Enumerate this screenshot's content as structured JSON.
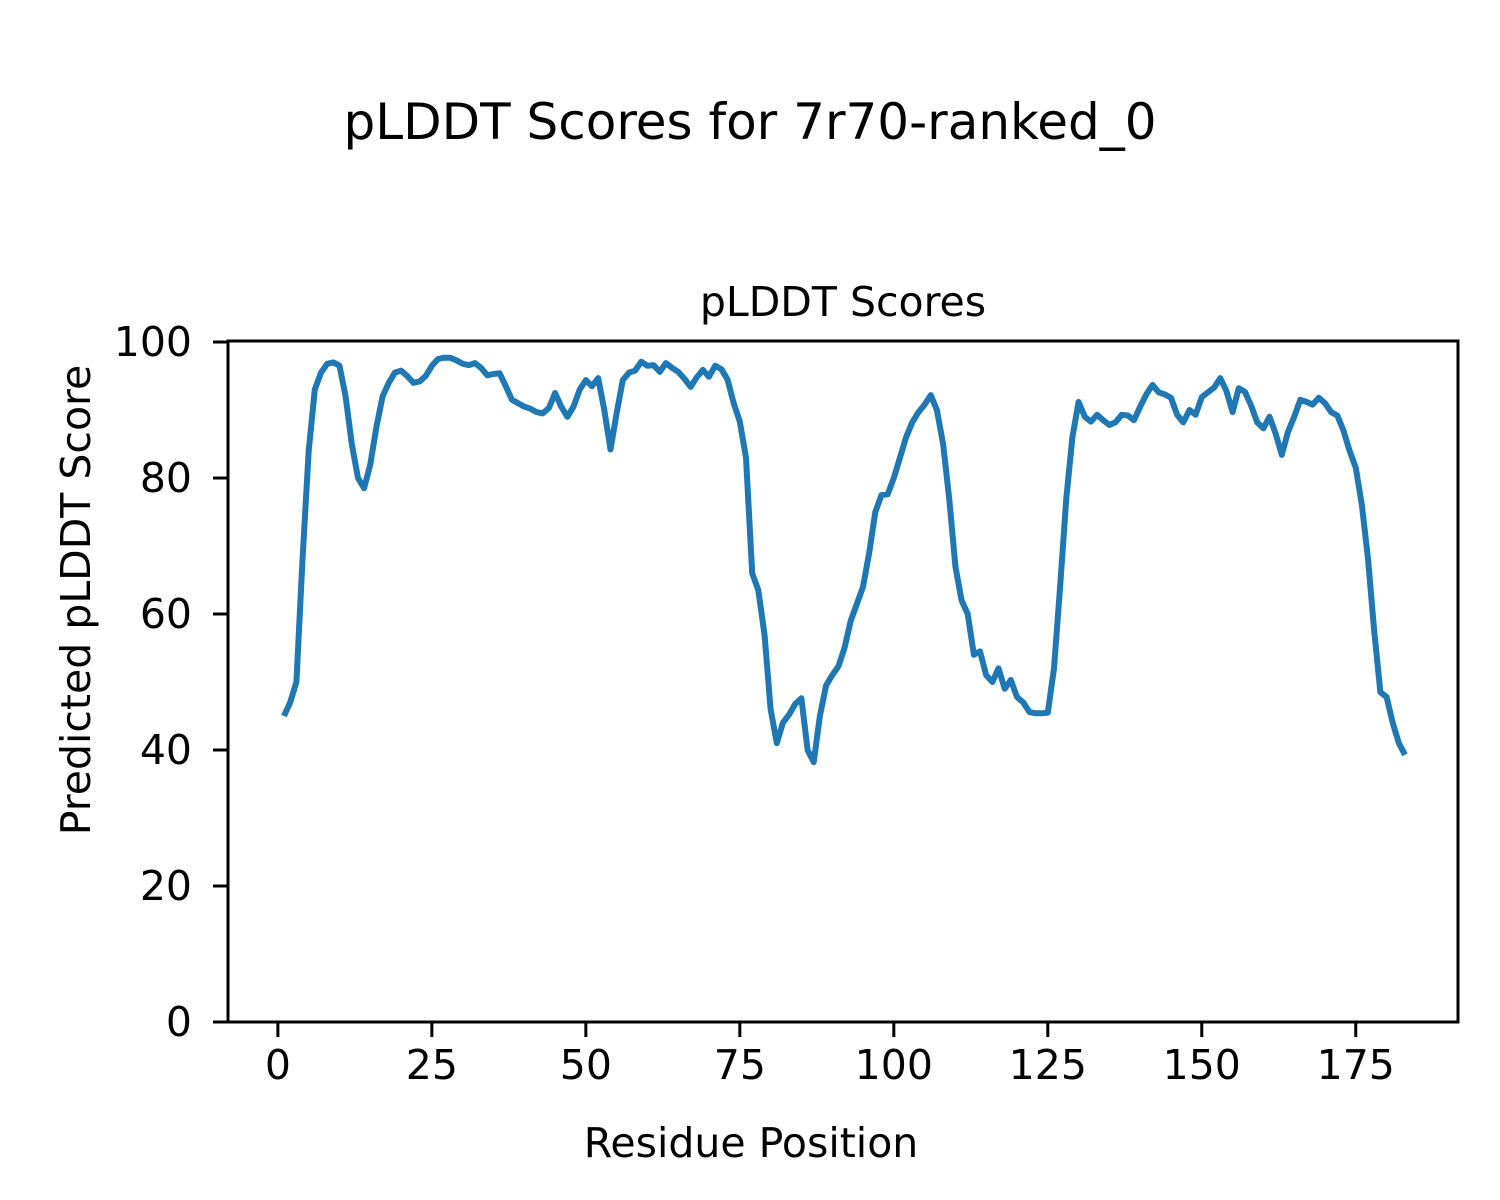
{
  "figure_title": "pLDDT Scores for 7r70-ranked_0",
  "colors": {
    "line": "#1f77b4",
    "text": "#000000",
    "background": "#ffffff",
    "spine": "#000000"
  },
  "chart_data": {
    "type": "line",
    "title": "pLDDT Scores",
    "xlabel": "Residue Position",
    "ylabel": "Predicted pLDDT Score",
    "legend": "none",
    "grid": false,
    "line_color": "#1f77b4",
    "xlim": [
      -8.1,
      191.6
    ],
    "ylim": [
      0,
      100.15
    ],
    "x_ticks": [
      0,
      25,
      50,
      75,
      100,
      125,
      150,
      175
    ],
    "y_ticks": [
      0,
      20,
      40,
      60,
      80,
      100
    ],
    "x": [
      1,
      2,
      3,
      4,
      5,
      6,
      7,
      8,
      9,
      10,
      11,
      12,
      13,
      14,
      15,
      16,
      17,
      18,
      19,
      20,
      21,
      22,
      23,
      24,
      25,
      26,
      27,
      28,
      29,
      30,
      31,
      32,
      33,
      34,
      35,
      36,
      37,
      38,
      39,
      40,
      41,
      42,
      43,
      44,
      45,
      46,
      47,
      48,
      49,
      50,
      51,
      52,
      53,
      54,
      55,
      56,
      57,
      58,
      59,
      60,
      61,
      62,
      63,
      64,
      65,
      66,
      67,
      68,
      69,
      70,
      71,
      72,
      73,
      74,
      75,
      76,
      77,
      78,
      79,
      80,
      81,
      82,
      83,
      84,
      85,
      86,
      87,
      88,
      89,
      90,
      91,
      92,
      93,
      94,
      95,
      96,
      97,
      98,
      99,
      100,
      101,
      102,
      103,
      104,
      105,
      106,
      107,
      108,
      109,
      110,
      111,
      112,
      113,
      114,
      115,
      116,
      117,
      118,
      119,
      120,
      121,
      122,
      123,
      124,
      125,
      126,
      127,
      128,
      129,
      130,
      131,
      132,
      133,
      134,
      135,
      136,
      137,
      138,
      139,
      140,
      141,
      142,
      143,
      144,
      145,
      146,
      147,
      148,
      149,
      150,
      151,
      152,
      153,
      154,
      155,
      156,
      157,
      158,
      159,
      160,
      161,
      162,
      163,
      164,
      165,
      166,
      167,
      168,
      169,
      170,
      171,
      172,
      173,
      174,
      175,
      176,
      177,
      178,
      179,
      180,
      181,
      182,
      183
    ],
    "values": [
      45,
      47,
      50,
      68,
      84,
      93,
      95.5,
      96.8,
      97,
      96.5,
      92,
      85,
      80,
      78.5,
      82,
      87.5,
      92,
      94,
      95.5,
      95.8,
      95,
      94,
      94.2,
      95,
      96.5,
      97.5,
      97.7,
      97.7,
      97.3,
      96.8,
      96.6,
      96.9,
      96.2,
      95.1,
      95.3,
      95.4,
      93.5,
      91.5,
      91,
      90.5,
      90.2,
      89.7,
      89.5,
      90.3,
      92.5,
      90.5,
      89,
      90.5,
      93,
      94.4,
      93.5,
      94.7,
      90,
      84.2,
      89.5,
      94.4,
      95.5,
      95.8,
      97.1,
      96.5,
      96.6,
      95.6,
      96.9,
      96.2,
      95.6,
      94.6,
      93.4,
      94.8,
      95.9,
      94.9,
      96.5,
      96,
      94.5,
      91,
      88.3,
      83,
      66,
      63.5,
      57,
      46,
      41,
      44,
      45.2,
      46.8,
      47.6,
      40,
      38.2,
      45,
      49.5,
      51,
      52.3,
      55,
      59,
      61.5,
      64,
      69,
      75,
      77.5,
      77.6,
      80,
      83,
      86,
      88.2,
      89.7,
      90.8,
      92.2,
      90,
      85,
      77,
      67,
      62,
      60,
      54,
      54.5,
      51,
      50,
      52,
      49,
      50.3,
      47.8,
      47,
      45.6,
      45.4,
      45.4,
      45.5,
      52,
      64,
      77,
      86,
      91.2,
      89,
      88.3,
      89.3,
      88.5,
      87.8,
      88.2,
      89.3,
      89.2,
      88.5,
      90.5,
      92.3,
      93.7,
      92.6,
      92.3,
      91.8,
      89.3,
      88.2,
      90,
      89.3,
      91.9,
      92.6,
      93.3,
      94.7,
      92.8,
      89.7,
      93.2,
      92.7,
      90.7,
      88.2,
      87.3,
      89,
      86.5,
      83.4,
      86.8,
      89,
      91.5,
      91.2,
      90.8,
      91.8,
      91,
      89.7,
      89.2,
      87,
      84,
      81.5,
      76,
      68,
      57.5,
      48.5,
      47.8,
      44,
      41,
      39.3
    ]
  }
}
